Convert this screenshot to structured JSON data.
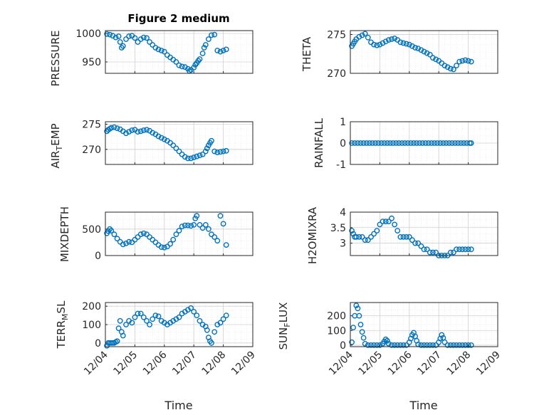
{
  "figure": {
    "title": "Figure 2 medium",
    "accent_color": "#0072BD",
    "x_tick_labels": [
      "12/04",
      "12/05",
      "12/06",
      "12/07",
      "12/08",
      "12/09"
    ],
    "xlabel": "Time"
  },
  "chart_data": [
    {
      "type": "scatter",
      "ylabel": "PRESSURE",
      "ylim": [
        930,
        1005
      ],
      "yticks": [
        950,
        1000
      ],
      "xlim": [
        0,
        5
      ],
      "grid": true,
      "x": [
        0.05,
        0.15,
        0.25,
        0.35,
        0.45,
        0.5,
        0.55,
        0.6,
        0.7,
        0.8,
        0.9,
        1.0,
        1.1,
        1.2,
        1.3,
        1.4,
        1.5,
        1.6,
        1.7,
        1.8,
        1.9,
        2.0,
        2.1,
        2.2,
        2.3,
        2.4,
        2.5,
        2.6,
        2.7,
        2.8,
        2.85,
        2.9,
        3.0,
        3.05,
        3.1,
        3.15,
        3.2,
        3.3,
        3.35,
        3.4,
        3.5,
        3.6,
        3.7,
        3.8,
        3.9,
        4.0,
        4.1
      ],
      "y": [
        999,
        998,
        996,
        993,
        995,
        985,
        975,
        978,
        990,
        995,
        996,
        992,
        985,
        990,
        993,
        992,
        985,
        980,
        975,
        972,
        970,
        968,
        962,
        958,
        954,
        950,
        944,
        942,
        941,
        938,
        934,
        936,
        940,
        945,
        948,
        952,
        955,
        965,
        975,
        980,
        990,
        997,
        998,
        970,
        968,
        970,
        972
      ]
    },
    {
      "type": "scatter",
      "ylabel": "THETA",
      "ylim": [
        270,
        275.5
      ],
      "yticks": [
        270,
        275
      ],
      "xlim": [
        0,
        5
      ],
      "grid": true,
      "x": [
        0.05,
        0.1,
        0.15,
        0.2,
        0.3,
        0.4,
        0.5,
        0.6,
        0.7,
        0.8,
        0.9,
        1.0,
        1.1,
        1.2,
        1.3,
        1.4,
        1.5,
        1.6,
        1.7,
        1.8,
        1.9,
        2.0,
        2.1,
        2.2,
        2.3,
        2.4,
        2.5,
        2.6,
        2.7,
        2.8,
        2.9,
        3.0,
        3.1,
        3.2,
        3.3,
        3.4,
        3.5,
        3.6,
        3.7,
        3.8,
        3.9,
        4.0,
        4.1
      ],
      "y": [
        273.5,
        273.8,
        274.1,
        274.4,
        274.7,
        274.9,
        275.1,
        274.6,
        274.0,
        273.7,
        273.6,
        273.7,
        273.9,
        274.1,
        274.3,
        274.4,
        274.5,
        274.3,
        274.0,
        273.9,
        273.8,
        273.7,
        273.5,
        273.3,
        273.2,
        273.0,
        272.8,
        272.6,
        272.4,
        272.0,
        271.8,
        271.6,
        271.3,
        271.0,
        270.8,
        270.6,
        270.5,
        271.0,
        271.5,
        271.6,
        271.7,
        271.6,
        271.5
      ]
    },
    {
      "type": "scatter",
      "ylabel": "AIR_TEMP",
      "ylim": [
        267,
        275.5
      ],
      "yticks": [
        270,
        275
      ],
      "xlim": [
        0,
        5
      ],
      "grid": true,
      "x": [
        0.05,
        0.1,
        0.15,
        0.2,
        0.3,
        0.4,
        0.5,
        0.6,
        0.7,
        0.8,
        0.9,
        1.0,
        1.1,
        1.2,
        1.3,
        1.4,
        1.5,
        1.6,
        1.7,
        1.8,
        1.9,
        2.0,
        2.1,
        2.2,
        2.3,
        2.4,
        2.5,
        2.6,
        2.7,
        2.8,
        2.9,
        3.0,
        3.1,
        3.2,
        3.3,
        3.4,
        3.45,
        3.5,
        3.55,
        3.6,
        3.7,
        3.8,
        3.9,
        4.0,
        4.1
      ],
      "y": [
        273.6,
        273.9,
        274.1,
        274.3,
        274.4,
        274.2,
        274.0,
        273.6,
        273.2,
        273.5,
        273.8,
        273.9,
        273.5,
        273.6,
        273.8,
        273.9,
        273.7,
        273.3,
        273.0,
        272.6,
        272.3,
        272.0,
        271.7,
        271.3,
        270.8,
        270.2,
        269.6,
        269.0,
        268.5,
        268.2,
        268.2,
        268.4,
        268.6,
        268.8,
        269.0,
        269.6,
        270.2,
        270.8,
        271.3,
        271.7,
        269.6,
        269.4,
        269.5,
        269.6,
        269.7
      ]
    },
    {
      "type": "scatter",
      "ylabel": "RAINFALL",
      "ylim": [
        -1,
        1
      ],
      "yticks": [
        -1,
        0,
        1
      ],
      "xlim": [
        0,
        5
      ],
      "grid": true,
      "x": [
        0.05,
        0.15,
        0.25,
        0.35,
        0.45,
        0.55,
        0.65,
        0.75,
        0.85,
        0.95,
        1.05,
        1.15,
        1.25,
        1.35,
        1.45,
        1.55,
        1.65,
        1.75,
        1.85,
        1.95,
        2.05,
        2.15,
        2.25,
        2.35,
        2.45,
        2.55,
        2.65,
        2.75,
        2.85,
        2.95,
        3.05,
        3.15,
        3.25,
        3.35,
        3.45,
        3.55,
        3.65,
        3.75,
        3.85,
        3.95,
        4.05,
        4.1
      ],
      "y": [
        0,
        0,
        0,
        0,
        0,
        0,
        0,
        0,
        0,
        0,
        0,
        0,
        0,
        0,
        0,
        0,
        0,
        0,
        0,
        0,
        0,
        0,
        0,
        0,
        0,
        0,
        0,
        0,
        0,
        0,
        0,
        0,
        0,
        0,
        0,
        0,
        0,
        0,
        0,
        0,
        0,
        0
      ]
    },
    {
      "type": "scatter",
      "ylabel": "MIXDEPTH",
      "ylim": [
        0,
        820
      ],
      "yticks": [
        0,
        500
      ],
      "xlim": [
        0,
        5
      ],
      "grid": true,
      "x": [
        0.05,
        0.1,
        0.15,
        0.2,
        0.3,
        0.4,
        0.5,
        0.6,
        0.7,
        0.8,
        0.9,
        1.0,
        1.1,
        1.2,
        1.3,
        1.4,
        1.5,
        1.6,
        1.7,
        1.8,
        1.9,
        2.0,
        2.1,
        2.2,
        2.3,
        2.4,
        2.5,
        2.6,
        2.7,
        2.8,
        2.9,
        3.0,
        3.05,
        3.1,
        3.2,
        3.3,
        3.4,
        3.5,
        3.6,
        3.7,
        3.8,
        3.9,
        4.0,
        4.1
      ],
      "y": [
        420,
        460,
        500,
        470,
        400,
        320,
        260,
        210,
        230,
        260,
        250,
        300,
        350,
        400,
        420,
        400,
        350,
        300,
        250,
        200,
        160,
        150,
        170,
        220,
        300,
        400,
        470,
        550,
        570,
        570,
        560,
        580,
        700,
        750,
        580,
        520,
        580,
        500,
        400,
        350,
        280,
        750,
        600,
        200
      ]
    },
    {
      "type": "scatter",
      "ylabel": "H2OMIXRA",
      "ylim": [
        2.6,
        4.0
      ],
      "yticks": [
        3,
        3.5,
        4
      ],
      "xlim": [
        0,
        5
      ],
      "grid": true,
      "x": [
        0.05,
        0.1,
        0.15,
        0.2,
        0.3,
        0.4,
        0.5,
        0.6,
        0.7,
        0.8,
        0.9,
        1.0,
        1.1,
        1.2,
        1.3,
        1.4,
        1.5,
        1.6,
        1.7,
        1.8,
        1.9,
        2.0,
        2.1,
        2.2,
        2.3,
        2.4,
        2.5,
        2.6,
        2.7,
        2.8,
        2.9,
        3.0,
        3.1,
        3.2,
        3.3,
        3.4,
        3.5,
        3.6,
        3.7,
        3.8,
        3.9,
        4.0,
        4.1
      ],
      "y": [
        3.4,
        3.3,
        3.2,
        3.2,
        3.2,
        3.2,
        3.1,
        3.1,
        3.2,
        3.3,
        3.4,
        3.6,
        3.7,
        3.7,
        3.7,
        3.8,
        3.6,
        3.4,
        3.2,
        3.2,
        3.2,
        3.2,
        3.1,
        3.0,
        3.0,
        2.9,
        2.8,
        2.8,
        2.7,
        2.7,
        2.7,
        2.6,
        2.6,
        2.6,
        2.6,
        2.7,
        2.7,
        2.8,
        2.8,
        2.8,
        2.8,
        2.8,
        2.8
      ]
    },
    {
      "type": "scatter",
      "ylabel": "TERR_MSL",
      "ylim": [
        -20,
        220
      ],
      "yticks": [
        0,
        100,
        200
      ],
      "xlim": [
        0,
        5
      ],
      "grid": true,
      "x": [
        0.05,
        0.1,
        0.15,
        0.2,
        0.25,
        0.3,
        0.35,
        0.4,
        0.45,
        0.5,
        0.55,
        0.6,
        0.7,
        0.8,
        0.9,
        1.0,
        1.1,
        1.2,
        1.3,
        1.4,
        1.5,
        1.6,
        1.7,
        1.8,
        1.9,
        2.0,
        2.1,
        2.2,
        2.3,
        2.4,
        2.5,
        2.6,
        2.7,
        2.8,
        2.9,
        3.0,
        3.1,
        3.2,
        3.3,
        3.4,
        3.45,
        3.5,
        3.55,
        3.6,
        3.7,
        3.8,
        3.9,
        4.0,
        4.1
      ],
      "y": [
        -15,
        0,
        0,
        0,
        0,
        0,
        5,
        10,
        80,
        120,
        60,
        40,
        100,
        120,
        110,
        140,
        160,
        160,
        140,
        120,
        100,
        130,
        150,
        145,
        120,
        110,
        100,
        110,
        120,
        130,
        140,
        160,
        170,
        180,
        190,
        170,
        150,
        120,
        100,
        90,
        70,
        30,
        10,
        0,
        60,
        100,
        110,
        130,
        150
      ]
    },
    {
      "type": "scatter",
      "ylabel": "SUN_FLUX",
      "ylim": [
        -10,
        290
      ],
      "yticks": [
        0,
        100,
        200
      ],
      "xlim": [
        0,
        5
      ],
      "grid": true,
      "x": [
        0.05,
        0.1,
        0.15,
        0.2,
        0.25,
        0.3,
        0.35,
        0.4,
        0.45,
        0.5,
        0.6,
        0.7,
        0.8,
        0.9,
        1.0,
        1.1,
        1.15,
        1.2,
        1.25,
        1.3,
        1.4,
        1.5,
        1.6,
        1.7,
        1.8,
        1.9,
        2.0,
        2.05,
        2.1,
        2.15,
        2.2,
        2.25,
        2.3,
        2.4,
        2.5,
        2.6,
        2.7,
        2.8,
        2.9,
        3.0,
        3.05,
        3.1,
        3.15,
        3.2,
        3.3,
        3.4,
        3.5,
        3.6,
        3.7,
        3.8,
        3.9,
        4.0,
        4.1
      ],
      "y": [
        20,
        120,
        200,
        270,
        250,
        200,
        140,
        90,
        50,
        10,
        0,
        0,
        0,
        0,
        0,
        10,
        25,
        40,
        30,
        10,
        0,
        0,
        0,
        0,
        0,
        0,
        20,
        45,
        70,
        85,
        60,
        30,
        5,
        0,
        0,
        0,
        0,
        0,
        0,
        20,
        45,
        70,
        50,
        20,
        0,
        0,
        0,
        0,
        0,
        0,
        0,
        0,
        0
      ]
    }
  ]
}
